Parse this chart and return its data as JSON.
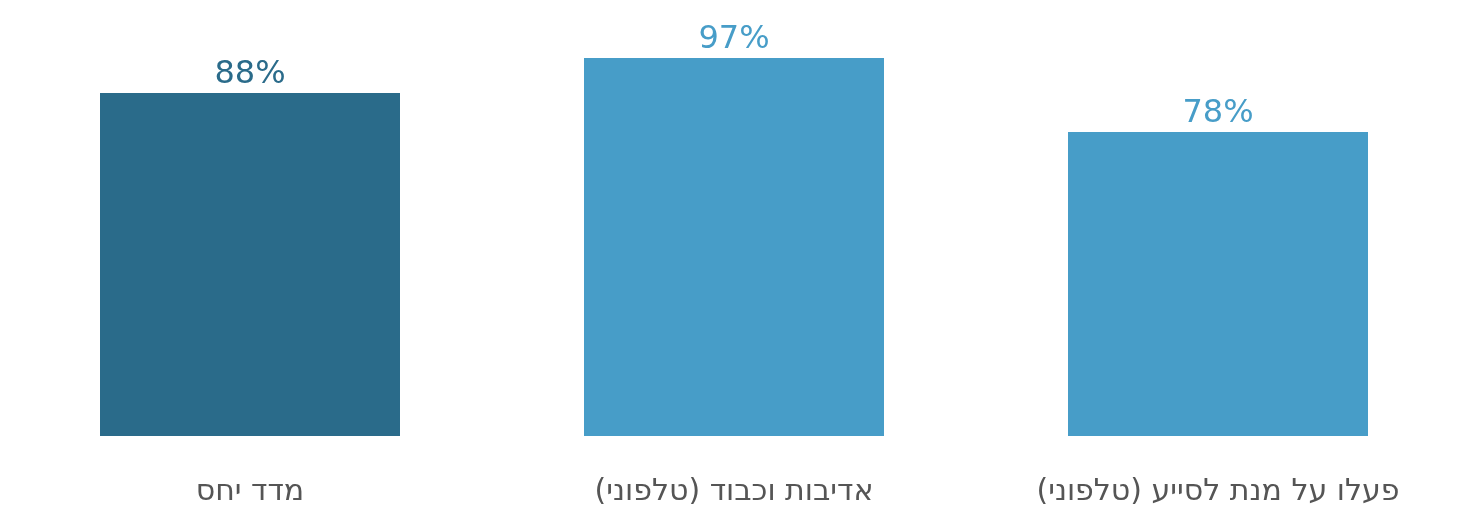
{
  "chart_data": {
    "type": "bar",
    "categories": [
      "מדד יחס",
      "אדיבות וכבוד (טלפוני)",
      "פעלו על מנת לסייע (טלפוני)"
    ],
    "values": [
      88,
      97,
      78
    ],
    "value_labels": [
      "88%",
      "97%",
      "78%"
    ],
    "colors": [
      "#2a6b8a",
      "#479dc8",
      "#479dc8"
    ]
  }
}
